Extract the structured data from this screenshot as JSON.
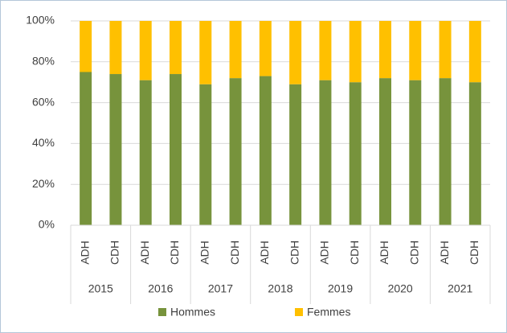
{
  "chart_data": {
    "type": "stacked_bar",
    "categories": [
      "ADH",
      "CDH",
      "ADH",
      "CDH",
      "ADH",
      "CDH",
      "ADH",
      "CDH",
      "ADH",
      "CDH",
      "ADH",
      "CDH",
      "ADH",
      "CDH"
    ],
    "groups": [
      "2015",
      "2016",
      "2017",
      "2018",
      "2019",
      "2020",
      "2021"
    ],
    "series": [
      {
        "name": "Hommes",
        "color": "#77933c",
        "values": [
          75,
          74,
          71,
          74,
          69,
          72,
          73,
          69,
          71,
          70,
          72,
          71,
          72,
          70
        ]
      },
      {
        "name": "Femmes",
        "color": "#ffc000",
        "values": [
          25,
          26,
          29,
          26,
          31,
          28,
          27,
          31,
          29,
          30,
          28,
          29,
          28,
          30
        ]
      }
    ],
    "ylim": [
      0,
      100
    ],
    "yticks": [
      {
        "value": 0,
        "label": "0%"
      },
      {
        "value": 20,
        "label": "20%"
      },
      {
        "value": 40,
        "label": "40%"
      },
      {
        "value": 60,
        "label": "60%"
      },
      {
        "value": 80,
        "label": "80%"
      },
      {
        "value": 100,
        "label": "100%"
      }
    ],
    "grid": true,
    "legend": "bottom"
  }
}
